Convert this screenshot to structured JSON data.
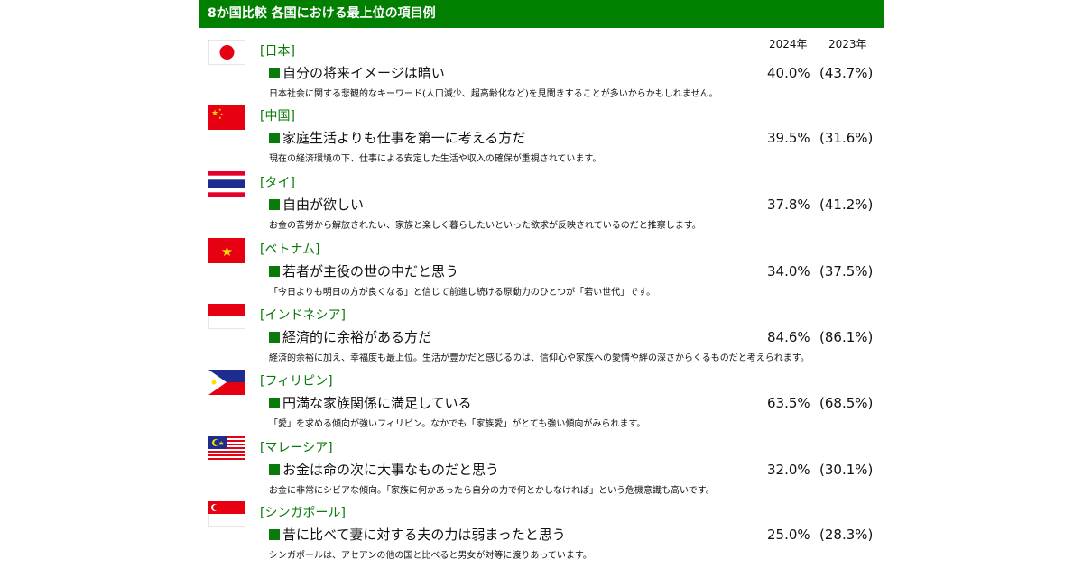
{
  "header": {
    "title": "8か国比較  各国における最上位の項目例"
  },
  "columns": {
    "y2024": "2024年",
    "y2023": "2023年"
  },
  "rows": [
    {
      "country": "[日本]",
      "flag": "japan-flag",
      "item": "自分の将来イメージは暗い",
      "p2024": "40.0%",
      "p2023": "(43.7%)",
      "desc": "日本社会に関する悲観的なキーワード(人口減少、超高齢化など)を見聞きすることが多いからかもしれません。"
    },
    {
      "country": "[中国]",
      "flag": "china-flag",
      "item": "家庭生活よりも仕事を第一に考える方だ",
      "p2024": "39.5%",
      "p2023": "(31.6%)",
      "desc": "現在の経済環境の下、仕事による安定した生活や収入の確保が重視されています。"
    },
    {
      "country": "[タイ]",
      "flag": "thailand-flag",
      "item": "自由が欲しい",
      "p2024": "37.8%",
      "p2023": "(41.2%)",
      "desc": "お金の苦労から解放されたい、家族と楽しく暮らしたいといった欲求が反映されているのだと推察します。"
    },
    {
      "country": "[ベトナム]",
      "flag": "vietnam-flag",
      "item": "若者が主役の世の中だと思う",
      "p2024": "34.0%",
      "p2023": "(37.5%)",
      "desc": "「今日よりも明日の方が良くなる」と信じて前進し続ける原動力のひとつが「若い世代」です。"
    },
    {
      "country": "[インドネシア]",
      "flag": "indonesia-flag",
      "item": "経済的に余裕がある方だ",
      "p2024": "84.6%",
      "p2023": "(86.1%)",
      "desc": "経済的余裕に加え、幸福度も最上位。生活が豊かだと感じるのは、信仰心や家族への愛情や絆の深さからくるものだと考えられます。"
    },
    {
      "country": "[フィリピン]",
      "flag": "philippines-flag",
      "item": "円満な家族関係に満足している",
      "p2024": "63.5%",
      "p2023": "(68.5%)",
      "desc": "「愛」を求める傾向が強いフィリピン。なかでも「家族愛」がとても強い傾向がみられます。"
    },
    {
      "country": "[マレーシア]",
      "flag": "malaysia-flag",
      "item": "お金は命の次に大事なものだと思う",
      "p2024": "32.0%",
      "p2023": "(30.1%)",
      "desc": "お金に非常にシビアな傾向。「家族に何かあったら自分の力で何とかしなければ」という危機意識も高いです。"
    },
    {
      "country": "[シンガポール]",
      "flag": "singapore-flag",
      "item": "昔に比べて妻に対する夫の力は弱まったと思う",
      "p2024": "25.0%",
      "p2023": "(28.3%)",
      "desc": "シンガポールは、アセアンの他の国と比べると男女が対等に渡りあっています。"
    }
  ],
  "colors": {
    "header": "#007f00",
    "country": "#0a7a0a"
  }
}
